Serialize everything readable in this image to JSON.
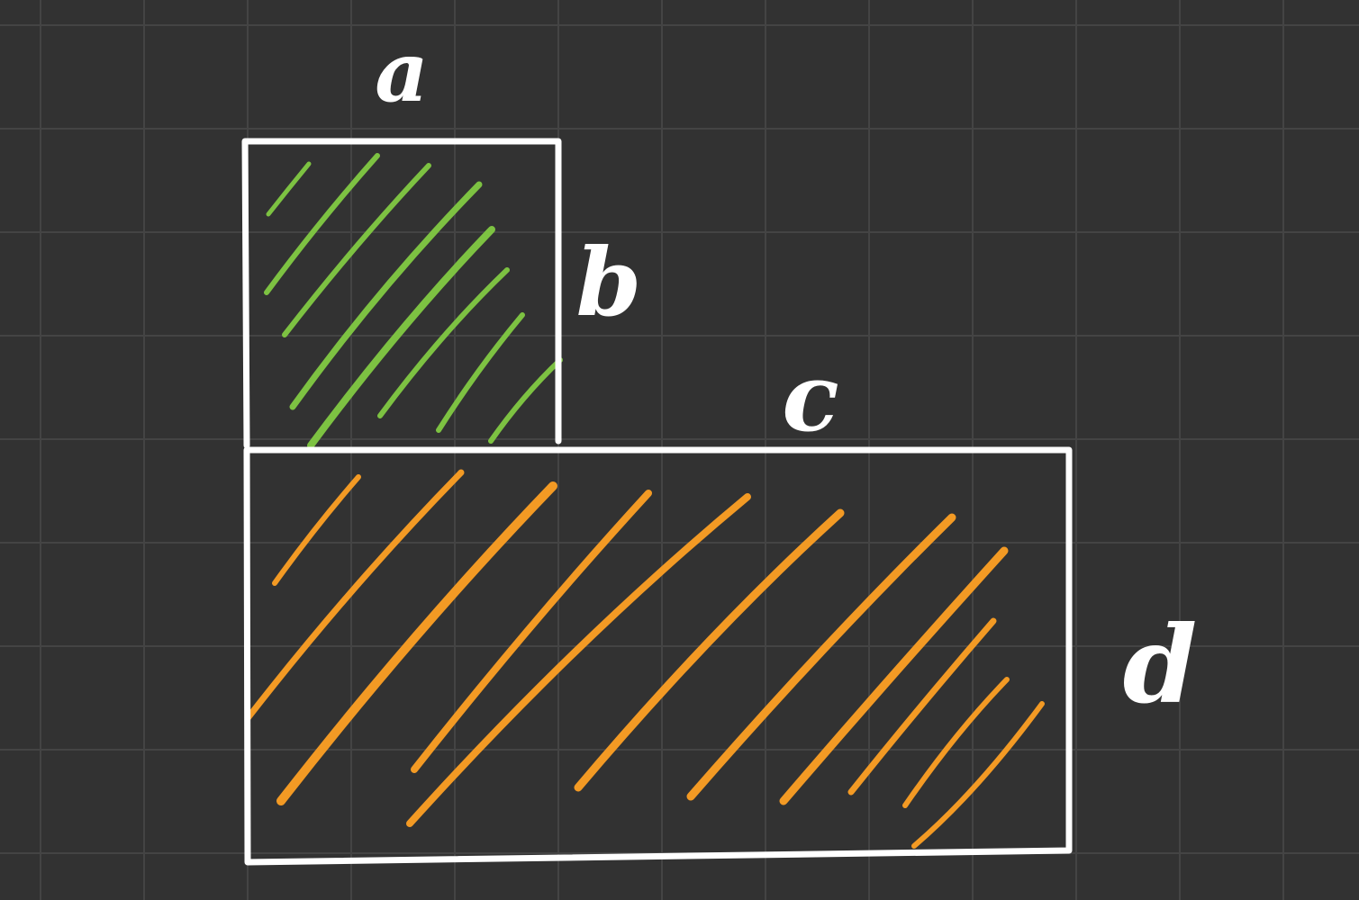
{
  "diagram": {
    "colors": {
      "background": "#323232",
      "grid": "#444444",
      "outline": "#ffffff",
      "small_rect_hatch": "#7dc242",
      "large_rect_hatch": "#f39a24"
    },
    "labels": {
      "small_width": "a",
      "small_height": "b",
      "large_width": "c",
      "large_height": "d"
    },
    "shapes": [
      {
        "name": "small-rectangle",
        "width_label": "a",
        "height_label": "b",
        "hatch": "green"
      },
      {
        "name": "large-rectangle",
        "width_label": "c",
        "height_label": "d",
        "hatch": "orange"
      }
    ]
  }
}
